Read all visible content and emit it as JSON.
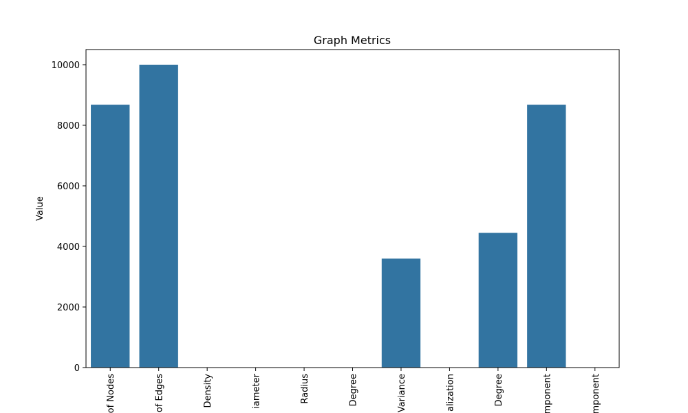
{
  "chart_data": {
    "type": "bar",
    "title": "Graph Metrics",
    "xlabel": "",
    "ylabel": "Value",
    "categories": [
      "of Nodes",
      "of Edges",
      "Density",
      "iameter",
      "Radius",
      "Degree",
      "Variance",
      "alization",
      "Degree",
      "mponent",
      "mponent"
    ],
    "values": [
      8680,
      10000,
      0,
      0,
      0,
      0,
      3600,
      0,
      4450,
      8680,
      0
    ],
    "ylim": [
      0,
      10500
    ],
    "yticks": [
      0,
      2000,
      4000,
      6000,
      8000,
      10000
    ],
    "grid": false,
    "bar_color": "#3274a1"
  }
}
